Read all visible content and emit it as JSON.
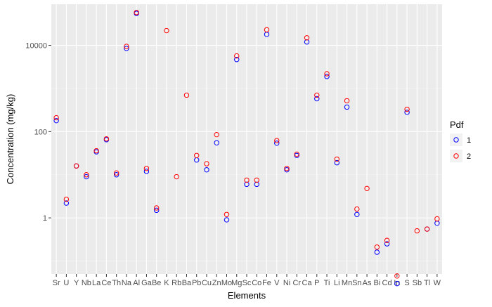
{
  "chart_data": {
    "type": "scatter",
    "title": "",
    "xlabel": "Elements",
    "ylabel": "Concentration (mg/kg)",
    "y_scale": "log10",
    "ylim": [
      0.05,
      90000
    ],
    "y_ticks": [
      1,
      100,
      10000
    ],
    "y_tick_labels": [
      "1",
      "100",
      "10000"
    ],
    "grid": true,
    "legend": {
      "title": "Pdf",
      "position": "right"
    },
    "categories": [
      "Sr",
      "U",
      "Y",
      "Nb",
      "La",
      "Ce",
      "Th",
      "Na",
      "Al",
      "Ga",
      "Be",
      "K",
      "Rb",
      "Ba",
      "Pb",
      "Cu",
      "Zn",
      "Mo",
      "Mg",
      "Sc",
      "Co",
      "Fe",
      "V",
      "Ni",
      "Cr",
      "Ca",
      "P",
      "Ti",
      "Li",
      "Mn",
      "Sn",
      "As",
      "Bi",
      "Cd",
      "In",
      "S",
      "Sb",
      "Tl",
      "W"
    ],
    "series": [
      {
        "name": "1",
        "color": "#0000ff",
        "values": [
          180,
          2.2,
          16,
          9,
          34,
          65,
          10,
          8500,
          55000,
          12,
          1.5,
          null,
          null,
          null,
          22,
          13,
          55,
          0.9,
          4700,
          6,
          6,
          18000,
          54,
          13,
          28,
          12000,
          580,
          1900,
          19,
          370,
          1.2,
          null,
          0.16,
          0.25,
          0.03,
          280,
          null,
          0.55,
          0.75
        ]
      },
      {
        "name": "2",
        "color": "#ff0000",
        "values": [
          210,
          2.7,
          16,
          10,
          36,
          68,
          11,
          9500,
          58000,
          14,
          1.7,
          22000,
          9,
          700,
          28,
          18,
          85,
          1.2,
          5700,
          7.5,
          7.5,
          23000,
          62,
          14,
          30,
          15000,
          700,
          2200,
          23,
          520,
          1.6,
          4.8,
          0.21,
          0.3,
          0.045,
          330,
          0.5,
          0.55,
          0.95
        ]
      }
    ]
  }
}
